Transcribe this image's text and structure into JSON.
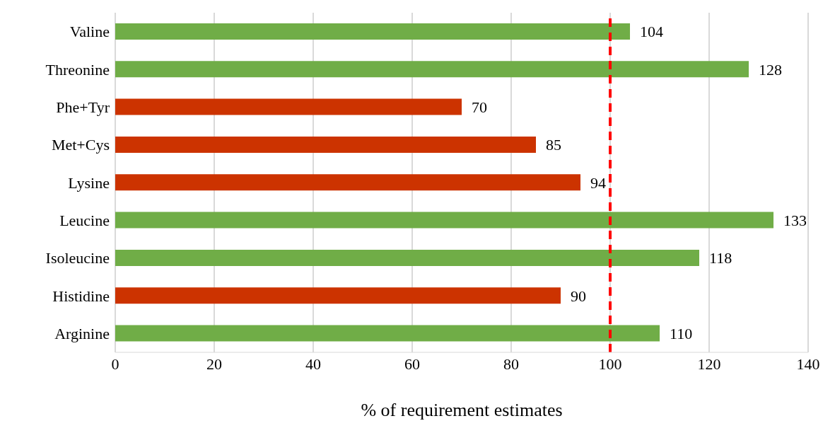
{
  "chart_data": {
    "type": "bar",
    "orientation": "horizontal",
    "xlabel": "% of requirement estimates",
    "categories": [
      "Valine",
      "Threonine",
      "Phe+Tyr",
      "Met+Cys",
      "Lysine",
      "Leucine",
      "Isoleucine",
      "Histidine",
      "Arginine"
    ],
    "values": [
      104,
      128,
      70,
      85,
      94,
      133,
      118,
      90,
      110
    ],
    "colors": [
      "#70ad47",
      "#70ad47",
      "#cc3300",
      "#cc3300",
      "#cc3300",
      "#70ad47",
      "#70ad47",
      "#cc3300",
      "#70ad47"
    ],
    "xlim": [
      0,
      140
    ],
    "xticks": [
      0,
      20,
      40,
      60,
      80,
      100,
      120,
      140
    ],
    "grid": "x",
    "data_labels": true,
    "ref_lines": [
      {
        "axis": "x",
        "value": 100,
        "color": "#ff0000",
        "line_style": "dashed"
      }
    ]
  }
}
